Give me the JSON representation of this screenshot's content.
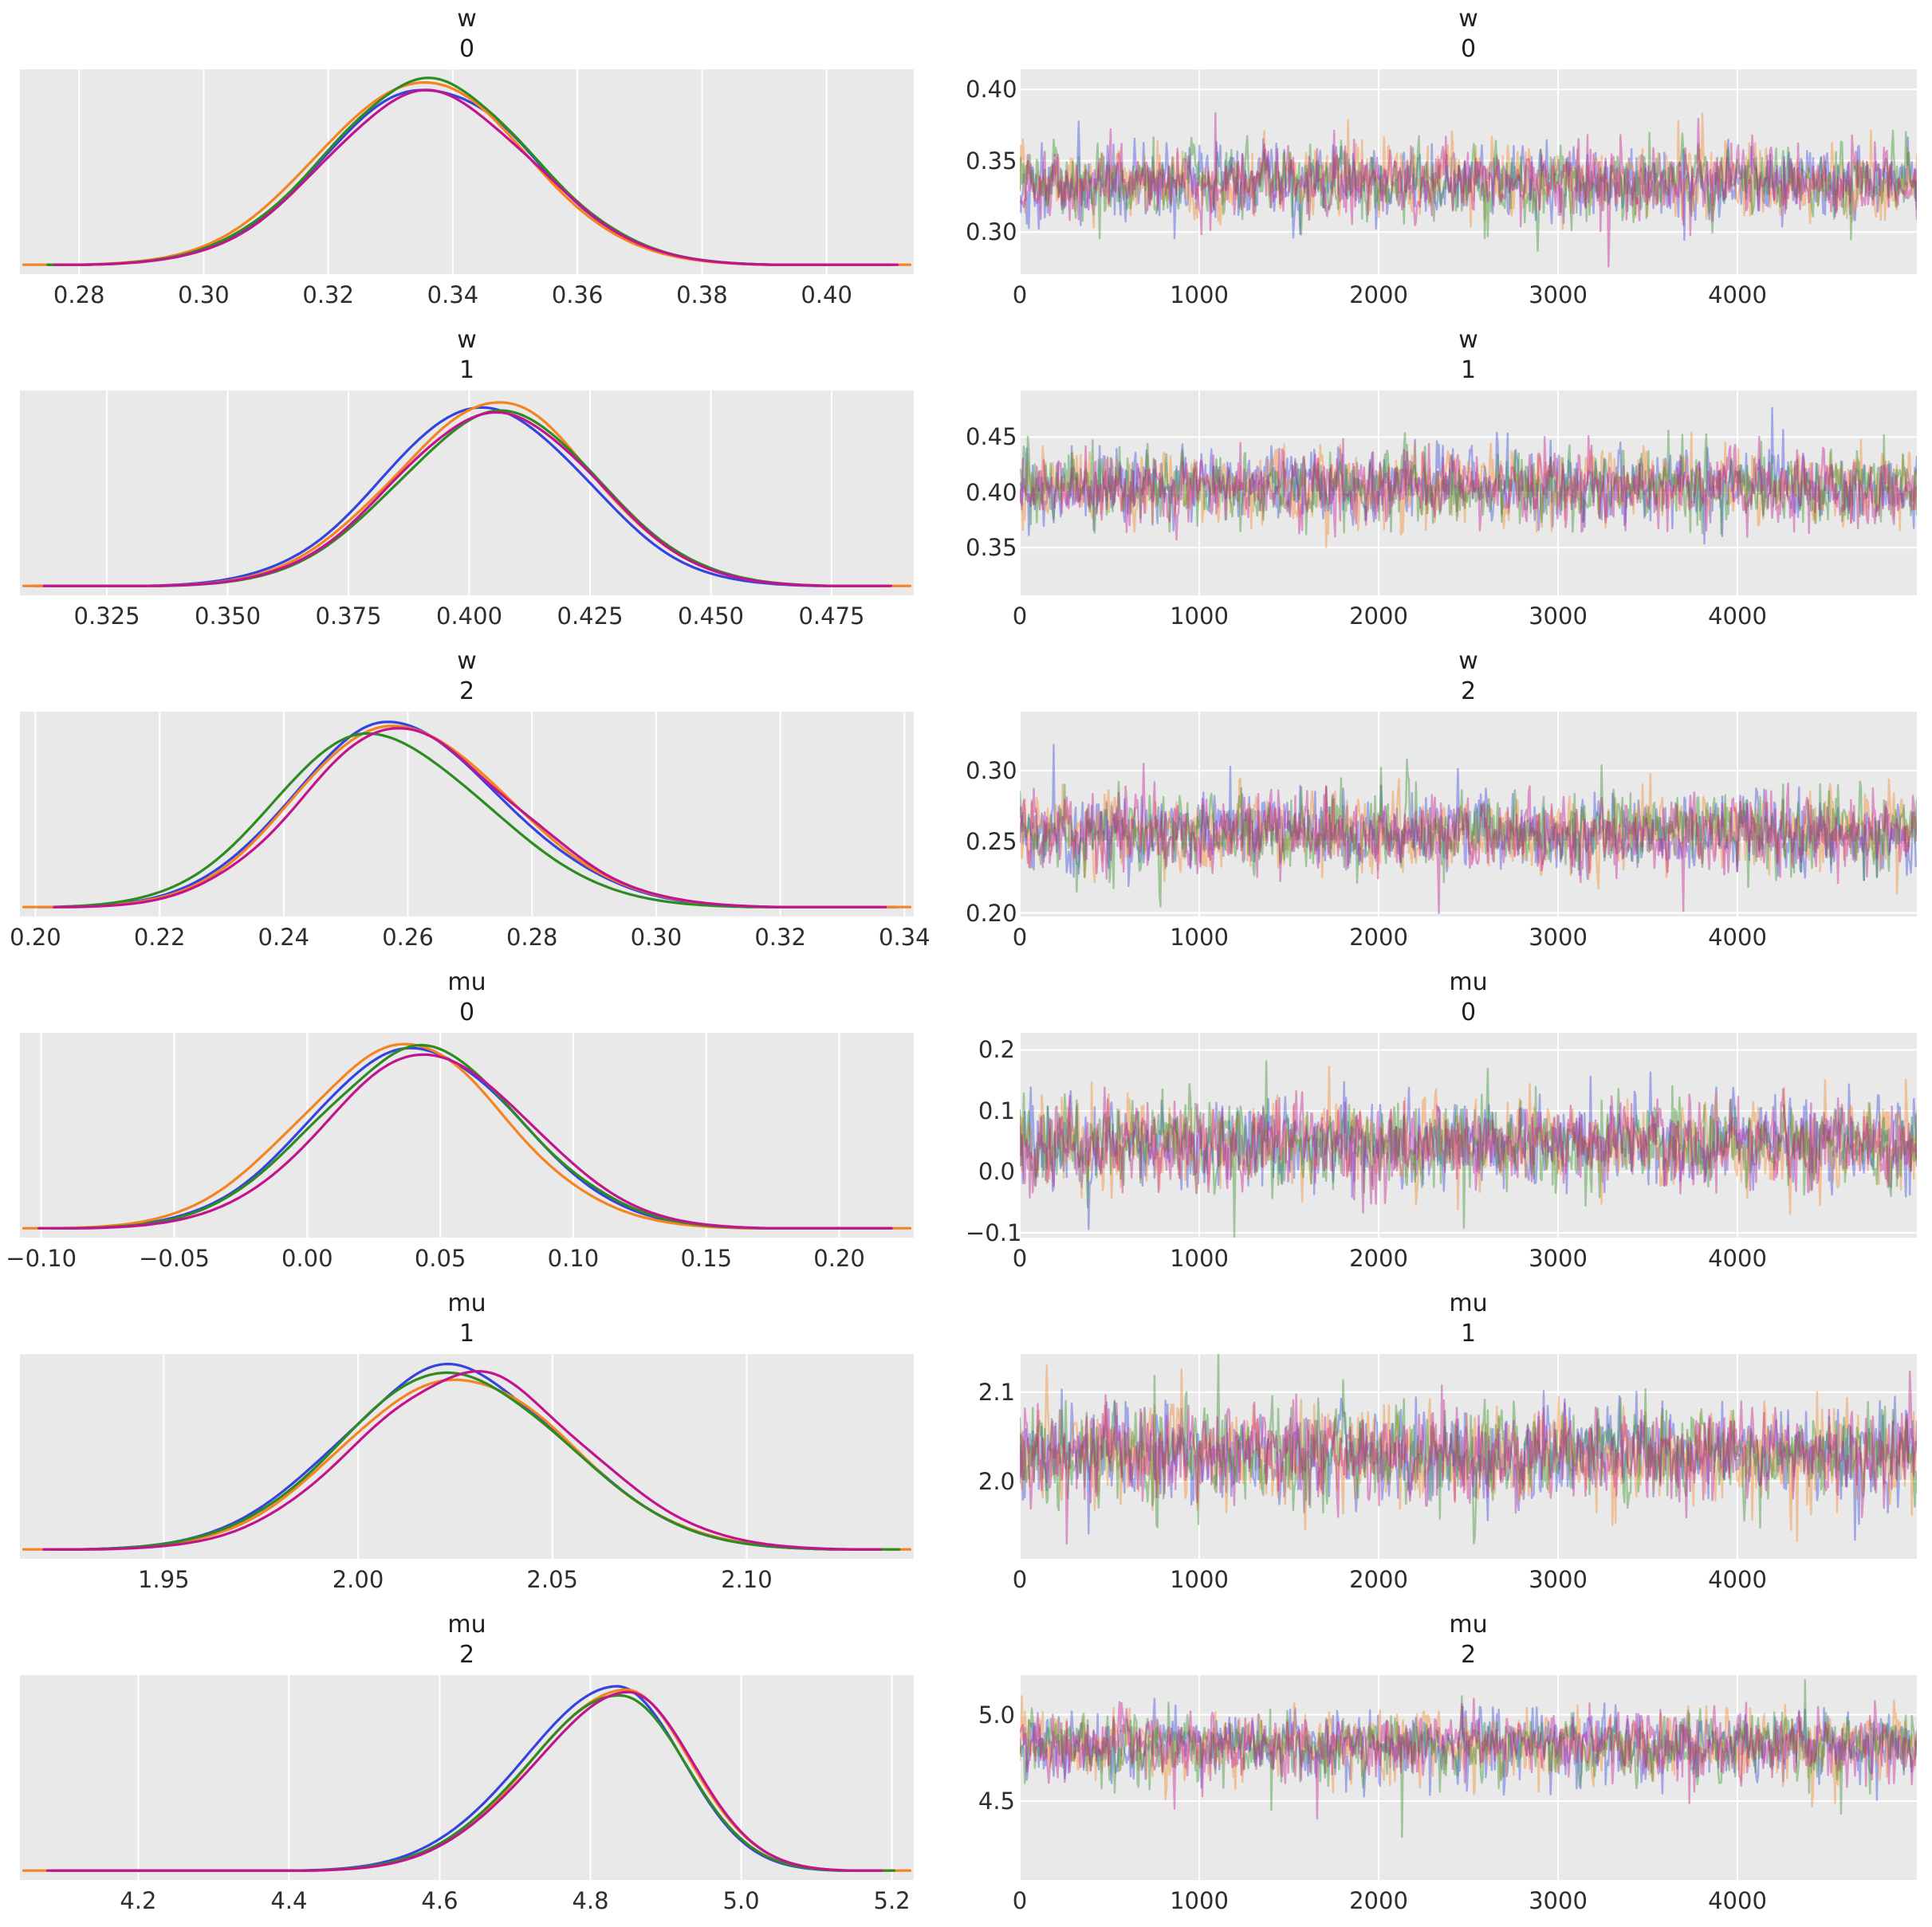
{
  "figure": {
    "bg": "#ffffff",
    "panel_bg": "#e9e9e9",
    "grid_color": "#ffffff",
    "text_color": "#2e2e2e",
    "n_chains": 4,
    "chain_colors": [
      "#3544df",
      "#f5831f",
      "#2e8b22",
      "#c1148e"
    ],
    "trace_blend_color": "#9e6b77"
  },
  "chart_data": [
    {
      "name": "w[0]",
      "title_line1": "w",
      "title_line2": "0",
      "density": {
        "type": "kde",
        "x_range": [
          0.2705,
          0.414
        ],
        "mean": 0.336,
        "sd_left": 0.0165,
        "sd_right": 0.0165,
        "x_tick_vals": [
          0.28,
          0.3,
          0.32,
          0.34,
          0.36,
          0.38,
          0.4
        ],
        "x_tick_labels": [
          "0.28",
          "0.30",
          "0.32",
          "0.34",
          "0.36",
          "0.38",
          "0.40"
        ]
      },
      "trace": {
        "type": "line",
        "x_range": [
          0,
          5000
        ],
        "y_range": [
          0.2705,
          0.414
        ],
        "center": 0.335,
        "sd": 0.0125,
        "skew": 1,
        "x_tick_vals": [
          0,
          1000,
          2000,
          3000,
          4000
        ],
        "x_tick_labels": [
          "0",
          "1000",
          "2000",
          "3000",
          "4000"
        ],
        "y_tick_vals": [
          0.3,
          0.35,
          0.4
        ],
        "y_tick_labels": [
          "0.30",
          "0.35",
          "0.40"
        ]
      }
    },
    {
      "name": "w[1]",
      "title_line1": "w",
      "title_line2": "1",
      "density": {
        "type": "kde",
        "x_range": [
          0.307,
          0.492
        ],
        "mean": 0.404,
        "sd_left": 0.021,
        "sd_right": 0.0205,
        "x_tick_vals": [
          0.325,
          0.35,
          0.375,
          0.4,
          0.425,
          0.45,
          0.475
        ],
        "x_tick_labels": [
          "0.325",
          "0.350",
          "0.375",
          "0.400",
          "0.425",
          "0.450",
          "0.475"
        ]
      },
      "trace": {
        "type": "line",
        "x_range": [
          0,
          5000
        ],
        "y_range": [
          0.307,
          0.492
        ],
        "center": 0.405,
        "sd": 0.0165,
        "skew": 1,
        "x_tick_vals": [
          0,
          1000,
          2000,
          3000,
          4000
        ],
        "x_tick_labels": [
          "0",
          "1000",
          "2000",
          "3000",
          "4000"
        ],
        "y_tick_vals": [
          0.35,
          0.4,
          0.45
        ],
        "y_tick_labels": [
          "0.35",
          "0.40",
          "0.45"
        ]
      }
    },
    {
      "name": "w[2]",
      "title_line1": "w",
      "title_line2": "2",
      "density": {
        "type": "kde",
        "x_range": [
          0.1975,
          0.3415
        ],
        "mean": 0.256,
        "sd_left": 0.0155,
        "sd_right": 0.0185,
        "x_tick_vals": [
          0.2,
          0.22,
          0.24,
          0.26,
          0.28,
          0.3,
          0.32,
          0.34
        ],
        "x_tick_labels": [
          "0.20",
          "0.22",
          "0.24",
          "0.26",
          "0.28",
          "0.30",
          "0.32",
          "0.34"
        ]
      },
      "trace": {
        "type": "line",
        "x_range": [
          0,
          5000
        ],
        "y_range": [
          0.1975,
          0.3415
        ],
        "center": 0.2565,
        "sd": 0.014,
        "skew": 1,
        "x_tick_vals": [
          0,
          1000,
          2000,
          3000,
          4000
        ],
        "x_tick_labels": [
          "0",
          "1000",
          "2000",
          "3000",
          "4000"
        ],
        "y_tick_vals": [
          0.2,
          0.25,
          0.3
        ],
        "y_tick_labels": [
          "0.20",
          "0.25",
          "0.30"
        ]
      }
    },
    {
      "name": "mu[0]",
      "title_line1": "mu",
      "title_line2": "0",
      "density": {
        "type": "kde",
        "x_range": [
          -0.108,
          0.228
        ],
        "mean": 0.042,
        "sd_left": 0.0385,
        "sd_right": 0.0385,
        "x_tick_vals": [
          -0.1,
          -0.05,
          0.0,
          0.05,
          0.1,
          0.15,
          0.2
        ],
        "x_tick_labels": [
          "−0.10",
          "−0.05",
          "0.00",
          "0.05",
          "0.10",
          "0.15",
          "0.20"
        ]
      },
      "trace": {
        "type": "line",
        "x_range": [
          0,
          5000
        ],
        "y_range": [
          -0.108,
          0.228
        ],
        "center": 0.045,
        "sd": 0.036,
        "skew": 1,
        "x_tick_vals": [
          0,
          1000,
          2000,
          3000,
          4000
        ],
        "x_tick_labels": [
          "0",
          "1000",
          "2000",
          "3000",
          "4000"
        ],
        "y_tick_vals": [
          -0.1,
          0.0,
          0.1,
          0.2
        ],
        "y_tick_labels": [
          "−0.1",
          "0.0",
          "0.1",
          "0.2"
        ]
      }
    },
    {
      "name": "mu[1]",
      "title_line1": "mu",
      "title_line2": "1",
      "density": {
        "type": "kde",
        "x_range": [
          1.913,
          2.143
        ],
        "mean": 2.028,
        "sd_left": 0.0285,
        "sd_right": 0.0295,
        "x_tick_vals": [
          1.95,
          2.0,
          2.05,
          2.1
        ],
        "x_tick_labels": [
          "1.95",
          "2.00",
          "2.05",
          "2.10"
        ]
      },
      "trace": {
        "type": "line",
        "x_range": [
          0,
          5000
        ],
        "y_range": [
          1.913,
          2.143
        ],
        "center": 2.03,
        "sd": 0.027,
        "skew": 1,
        "x_tick_vals": [
          0,
          1000,
          2000,
          3000,
          4000
        ],
        "x_tick_labels": [
          "0",
          "1000",
          "2000",
          "3000",
          "4000"
        ],
        "y_tick_vals": [
          2.0,
          2.1
        ],
        "y_tick_labels": [
          "2.0",
          "2.1"
        ]
      }
    },
    {
      "name": "mu[2]",
      "title_line1": "mu",
      "title_line2": "2",
      "density": {
        "type": "kde",
        "x_range": [
          4.043,
          5.229
        ],
        "mean": 4.85,
        "sd_left": 0.125,
        "sd_right": 0.088,
        "x_tick_vals": [
          4.2,
          4.4,
          4.6,
          4.8,
          5.0,
          5.2
        ],
        "x_tick_labels": [
          "4.2",
          "4.4",
          "4.6",
          "4.8",
          "5.0",
          "5.2"
        ]
      },
      "trace": {
        "type": "line",
        "x_range": [
          0,
          5000
        ],
        "y_range": [
          4.043,
          5.229
        ],
        "center": 4.835,
        "sd": 0.085,
        "skew": 1.3,
        "x_tick_vals": [
          0,
          1000,
          2000,
          3000,
          4000
        ],
        "x_tick_labels": [
          "0",
          "1000",
          "2000",
          "3000",
          "4000"
        ],
        "y_tick_vals": [
          4.5,
          5.0
        ],
        "y_tick_labels": [
          "4.5",
          "5.0"
        ]
      }
    }
  ]
}
